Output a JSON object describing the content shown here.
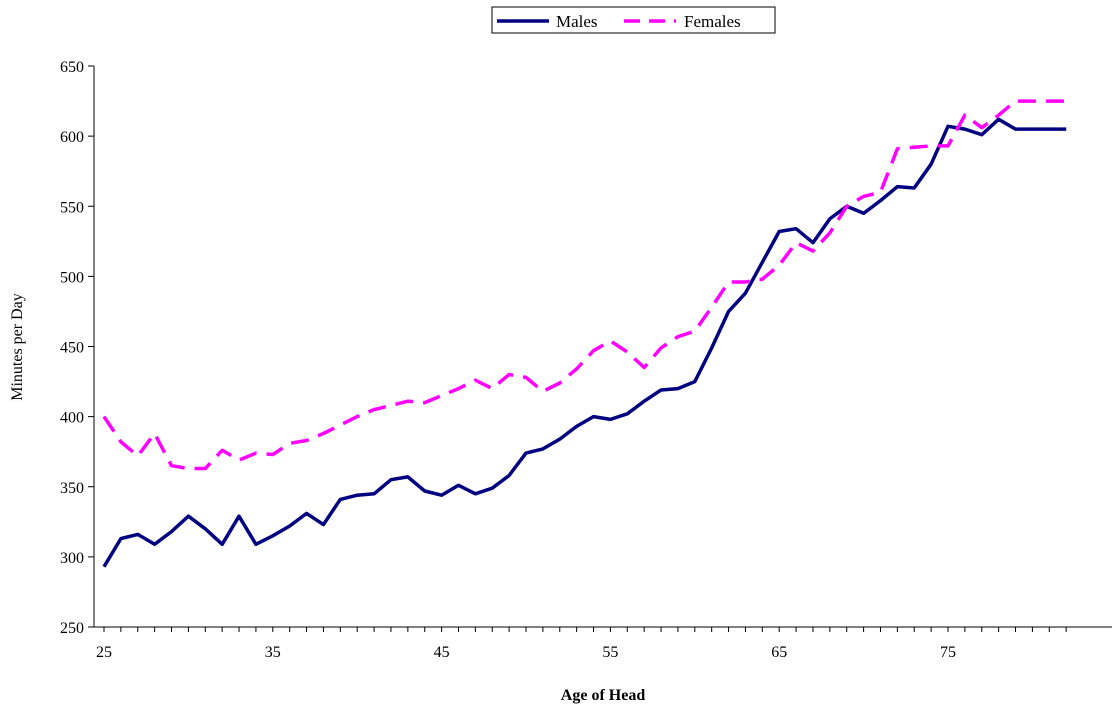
{
  "chart_data": {
    "type": "line",
    "title": "",
    "xlabel": "Age of Head",
    "ylabel": "Minutes per Day",
    "xlim": [
      25,
      82
    ],
    "ylim": [
      250,
      650
    ],
    "xticks": [
      25,
      35,
      45,
      55,
      65,
      75
    ],
    "yticks": [
      250,
      300,
      350,
      400,
      450,
      500,
      550,
      600,
      650
    ],
    "grid": false,
    "legend_position": "top-center",
    "x": [
      25,
      26,
      27,
      28,
      29,
      30,
      31,
      32,
      33,
      34,
      35,
      36,
      37,
      38,
      39,
      40,
      41,
      42,
      43,
      44,
      45,
      46,
      47,
      48,
      49,
      50,
      51,
      52,
      53,
      54,
      55,
      56,
      57,
      58,
      59,
      60,
      61,
      62,
      63,
      64,
      65,
      66,
      67,
      68,
      69,
      70,
      71,
      72,
      73,
      74,
      75,
      76,
      77,
      78,
      79,
      80,
      81,
      82
    ],
    "series": [
      {
        "name": "Males",
        "color": "#000080",
        "style": "solid",
        "values": [
          293,
          313,
          316,
          309,
          318,
          329,
          320,
          309,
          329,
          309,
          315,
          322,
          331,
          323,
          341,
          344,
          345,
          355,
          357,
          347,
          344,
          351,
          345,
          349,
          358,
          374,
          377,
          384,
          393,
          400,
          398,
          402,
          411,
          419,
          420,
          425,
          449,
          475,
          488,
          510,
          532,
          534,
          524,
          541,
          550,
          545,
          554,
          564,
          563,
          580,
          607,
          605,
          601,
          612,
          605,
          605,
          605,
          605
        ]
      },
      {
        "name": "Females",
        "color": "#FF00FF",
        "style": "dashed",
        "values": [
          400,
          382,
          372,
          388,
          365,
          363,
          363,
          376,
          369,
          374,
          373,
          381,
          383,
          388,
          394,
          400,
          405,
          408,
          411,
          410,
          415,
          420,
          426,
          420,
          430,
          428,
          418,
          424,
          434,
          447,
          454,
          446,
          435,
          449,
          457,
          461,
          478,
          496,
          496,
          498,
          508,
          524,
          518,
          531,
          550,
          557,
          560,
          591,
          592,
          593,
          593,
          615,
          606,
          615,
          625,
          625,
          625,
          625
        ]
      }
    ]
  }
}
